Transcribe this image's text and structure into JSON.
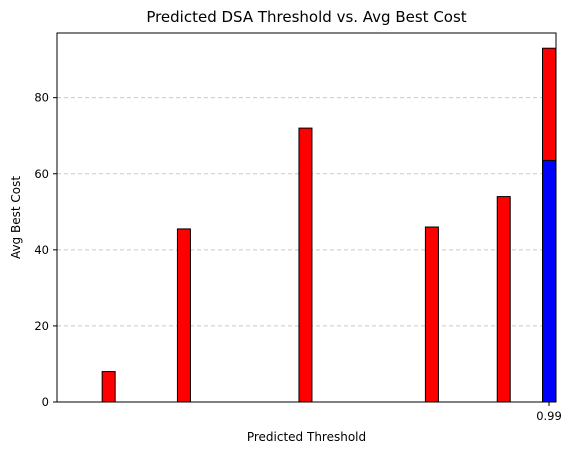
{
  "chart_data": {
    "type": "bar",
    "title": "Predicted DSA Threshold vs. Avg Best Cost",
    "xlabel": "Predicted Threshold",
    "ylabel": "Avg Best Cost",
    "ylim": [
      0,
      97
    ],
    "yticks": [
      0,
      20,
      40,
      60,
      80
    ],
    "grid": "y-dashed",
    "series": [
      {
        "color": "#ff0000",
        "values": [
          8,
          45.5,
          72,
          46,
          54,
          93
        ]
      },
      {
        "color": "#0000ff",
        "values": [
          null,
          null,
          null,
          null,
          null,
          63.5
        ]
      }
    ],
    "bar_positions_fraction": [
      0.105,
      0.258,
      0.505,
      0.762,
      0.908,
      1.0
    ],
    "x_tick_labels": [
      "",
      "",
      "",
      "",
      "",
      "0.99"
    ]
  }
}
